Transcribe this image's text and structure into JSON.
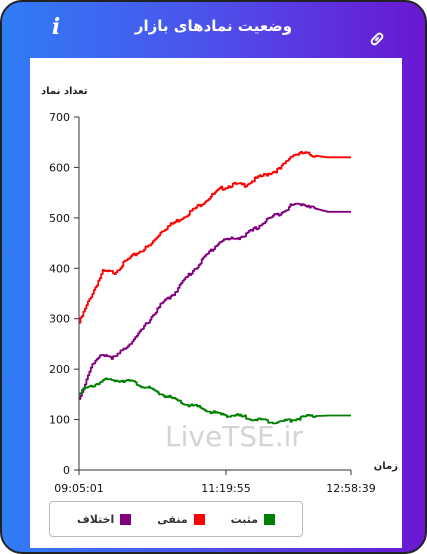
{
  "header": {
    "title": "وضعیت نمادهای بازار",
    "info_icon": "info-icon",
    "link_icon": "link-icon"
  },
  "colors": {
    "header_gradient_start": "#2f7cf6",
    "header_gradient_end": "#6a17d2",
    "negative": "#ff0000",
    "difference": "#800080",
    "positive": "#008000"
  },
  "chart_data": {
    "type": "line",
    "ylabel": "تعداد نماد",
    "xlabel": "زمان",
    "ylim": [
      0,
      700
    ],
    "yticks": [
      0,
      100,
      200,
      300,
      400,
      500,
      600,
      700
    ],
    "xticks": [
      "09:05:01",
      "11:19:55",
      "12:58:39"
    ],
    "x": [
      "09:05",
      "09:15",
      "09:25",
      "09:35",
      "09:45",
      "09:55",
      "10:05",
      "10:15",
      "10:25",
      "10:35",
      "10:45",
      "10:55",
      "11:05",
      "11:15",
      "11:25",
      "11:35",
      "11:45",
      "11:55",
      "12:05",
      "12:15",
      "12:25",
      "12:35",
      "12:45",
      "12:58"
    ],
    "watermark": "LiveTSE.ir",
    "grid": false,
    "legend_position": "bottom",
    "series": [
      {
        "name": "منفی",
        "color": "#ff0000",
        "values": [
          292,
          345,
          393,
          392,
          415,
          432,
          445,
          475,
          490,
          505,
          522,
          540,
          558,
          566,
          565,
          578,
          588,
          597,
          625,
          628,
          623,
          620,
          620,
          620
        ]
      },
      {
        "name": "اختلاف",
        "color": "#800080",
        "values": [
          140,
          205,
          230,
          222,
          245,
          268,
          300,
          330,
          350,
          380,
          405,
          432,
          455,
          458,
          465,
          480,
          498,
          510,
          525,
          528,
          518,
          512,
          512,
          512
        ]
      },
      {
        "name": "مثبت",
        "color": "#008000",
        "values": [
          155,
          165,
          178,
          178,
          178,
          170,
          160,
          150,
          140,
          130,
          125,
          116,
          110,
          108,
          105,
          100,
          97,
          95,
          100,
          105,
          107,
          108,
          108,
          108
        ]
      }
    ]
  }
}
